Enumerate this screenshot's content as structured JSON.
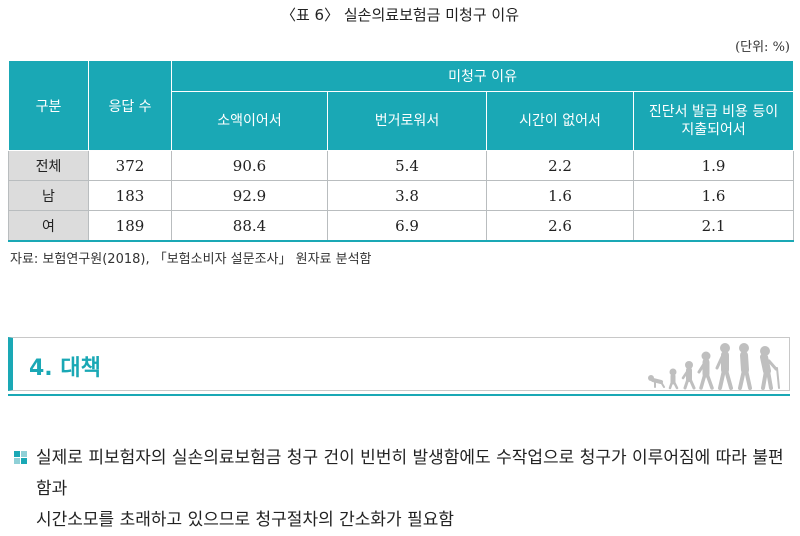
{
  "caption": "〈표 6〉 실손의료보험금 미청구 이유",
  "unit": "(단위: %)",
  "table": {
    "header_col1": "구분",
    "header_col2": "응답 수",
    "header_group": "미청구 이유",
    "sub_headers": [
      "소액이어서",
      "번거로워서",
      "시간이 없어서",
      "진단서 발급 비용 등이",
      "지출되어서"
    ],
    "rows": [
      {
        "label": "전체",
        "n": "372",
        "v": [
          "90.6",
          "5.4",
          "2.2",
          "1.9"
        ]
      },
      {
        "label": "남",
        "n": "183",
        "v": [
          "92.9",
          "3.8",
          "1.6",
          "1.6"
        ]
      },
      {
        "label": "여",
        "n": "189",
        "v": [
          "88.4",
          "6.9",
          "2.6",
          "2.1"
        ]
      }
    ]
  },
  "source": "자료: 보험연구원(2018), 「보험소비자 설문조사」 원자료 분석함",
  "section": {
    "title": "4. 대책",
    "icon": "aging-figures-icon"
  },
  "bullet_icon": "square-bullet-icon",
  "body_lines": [
    "실제로 피보험자의 실손의료보험금 청구 건이 빈번히 발생함에도 수작업으로 청구가 이루어짐에 따라 불편함과",
    "시간소모를 초래하고 있으므로 청구절차의 간소화가 필요함"
  ],
  "colors": {
    "accent": "#1aa8b5",
    "row_header_bg": "#dcdcdc",
    "figure_gray": "#bfbfbf"
  }
}
